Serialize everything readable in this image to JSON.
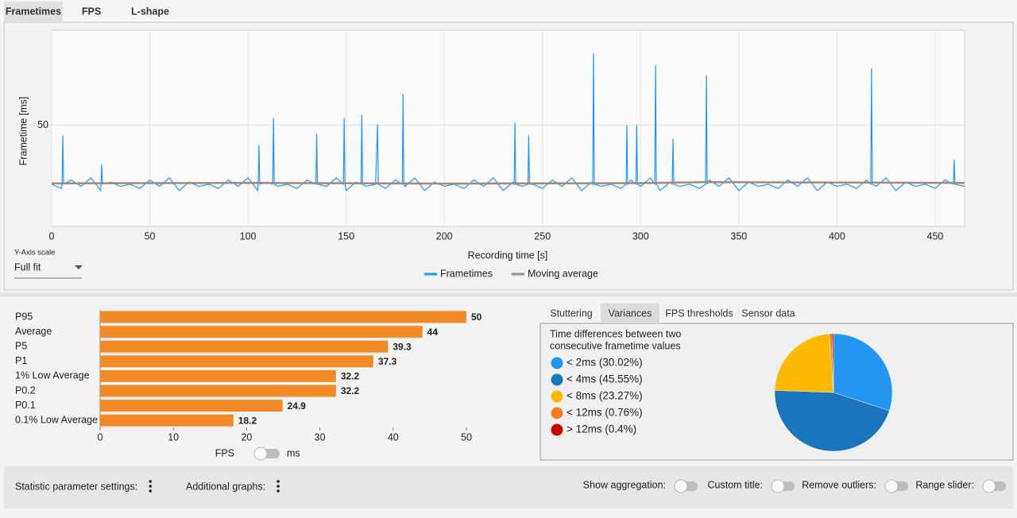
{
  "tabs": {
    "items": [
      "Frametimes",
      "FPS",
      "L-shape"
    ],
    "active": 0
  },
  "frametime_chart": {
    "type": "line",
    "y_label": "Frametime [ms]",
    "x_label": "Recording time [s]",
    "xlim": [
      0,
      465
    ],
    "xticks": [
      0,
      50,
      100,
      150,
      200,
      250,
      300,
      350,
      400,
      450
    ],
    "ylim": [
      2,
      95
    ],
    "yticks": [
      50
    ],
    "grid": true,
    "series": [
      {
        "name": "Frametimes",
        "color": "#2196f3",
        "x": [
          0,
          5,
          5.3,
          5.7,
          6.1,
          10,
          15,
          20,
          25,
          25.1,
          25.5,
          25.9,
          30,
          35,
          40,
          45,
          50,
          55,
          60,
          65,
          70,
          75,
          80,
          85,
          90,
          95,
          100,
          105,
          105.2,
          105.6,
          106,
          110,
          112.6,
          113,
          113.4,
          115,
          120,
          125,
          130,
          134.6,
          135,
          135.4,
          140,
          145,
          148.6,
          149,
          149.4,
          150,
          155,
          157.6,
          158,
          158.4,
          160,
          165,
          166,
          166.4,
          170,
          175,
          178.6,
          179,
          179.4,
          180,
          185,
          190,
          195,
          200,
          205,
          210,
          215,
          220,
          225,
          230,
          235,
          235.6,
          236,
          236.4,
          240,
          242.6,
          243,
          243.4,
          245,
          250,
          255,
          260,
          265,
          270,
          275,
          275.6,
          276,
          276.4,
          280,
          285,
          290,
          292.6,
          293,
          293.4,
          295,
          297.6,
          298,
          298.4,
          300,
          305,
          307.2,
          307.6,
          308,
          310,
          315,
          316.1,
          316.5,
          316.9,
          320,
          325,
          330,
          333.1,
          333.5,
          333.9,
          335,
          340,
          345,
          350,
          355,
          360,
          365,
          370,
          375,
          380,
          385,
          390,
          395,
          400,
          405,
          410,
          415,
          417.2,
          417.6,
          418,
          420,
          425,
          430,
          435,
          440,
          445,
          450,
          455,
          459.3,
          459.7,
          460.1,
          465
        ],
        "values": [
          22,
          20,
          22,
          45.1,
          22,
          24,
          21,
          25,
          19,
          22,
          31.4,
          22,
          23,
          21,
          22,
          20,
          24,
          21,
          25,
          19,
          23,
          21,
          22,
          20,
          24,
          21,
          25,
          19,
          22,
          40.5,
          22,
          23,
          22,
          53.4,
          22,
          21,
          22,
          20,
          24,
          22,
          45.8,
          22,
          21,
          25,
          22,
          53.4,
          22,
          19,
          23,
          22,
          54.9,
          22,
          21,
          22,
          50.4,
          22,
          20,
          24,
          22,
          64.8,
          22,
          21,
          25,
          19,
          23,
          21,
          22,
          20,
          24,
          21,
          25,
          19,
          23,
          22,
          51.1,
          22,
          21,
          22,
          45.1,
          22,
          22,
          20,
          24,
          21,
          25,
          19,
          23,
          22,
          84.1,
          22,
          21,
          22,
          20,
          22,
          50,
          22,
          24,
          22,
          50,
          22,
          21,
          25,
          22,
          78.4,
          22,
          19,
          23,
          22,
          43.6,
          22,
          21,
          22,
          20,
          22,
          73.5,
          22,
          24,
          21,
          25,
          19,
          23,
          21,
          22,
          20,
          24,
          21,
          25,
          19,
          23,
          21,
          22,
          20,
          24,
          22,
          76.9,
          22,
          21,
          25,
          19,
          23,
          21,
          22,
          20,
          24,
          22,
          33.7,
          22,
          21
        ]
      },
      {
        "name": "Moving average",
        "color": "#a1887f",
        "x": [
          0,
          100,
          200,
          300,
          333,
          400,
          465
        ],
        "values": [
          22.4,
          22.6,
          22.3,
          22.5,
          23,
          22.8,
          22.6
        ]
      }
    ]
  },
  "y_axis_scale": {
    "label": "Y-Axis scale",
    "value": "Full fit"
  },
  "stats_chart": {
    "type": "bar",
    "orientation": "horizontal",
    "categories": [
      "P95",
      "Average",
      "P5",
      "P1",
      "1% Low Average",
      "P0.2",
      "P0.1",
      "0.1% Low Average"
    ],
    "values": [
      50,
      44,
      39.3,
      37.3,
      32.2,
      32.2,
      24.9,
      18.2
    ],
    "color": "#f28a26",
    "xlim": [
      0,
      50
    ],
    "xticks": [
      0,
      10,
      20,
      30,
      40,
      50
    ]
  },
  "unit_toggle": {
    "left": "FPS",
    "right": "ms"
  },
  "side_tabs": {
    "items": [
      "Stuttering",
      "Variances",
      "FPS thresholds",
      "Sensor data"
    ],
    "active": 1
  },
  "variance_chart": {
    "type": "pie",
    "title_lines": [
      "Time differences between two",
      "consecutive frametime values"
    ],
    "categories": [
      "< 2ms (30.02%)",
      "< 4ms (45.55%)",
      "< 8ms (23.27%)",
      "< 12ms (0.76%)",
      "> 12ms (0.4%)"
    ],
    "values": [
      30.02,
      45.55,
      23.27,
      0.76,
      0.4
    ],
    "colors": [
      "#2196f3",
      "#1976bd",
      "#ffb900",
      "#f57f20",
      "#c80000"
    ]
  },
  "bottom_bar": {
    "menus": [
      "Statistic parameter settings:",
      "Additional graphs:"
    ],
    "toggles": [
      "Show aggregation:",
      "Custom title:",
      "Remove outliers:",
      "Range slider:"
    ]
  }
}
